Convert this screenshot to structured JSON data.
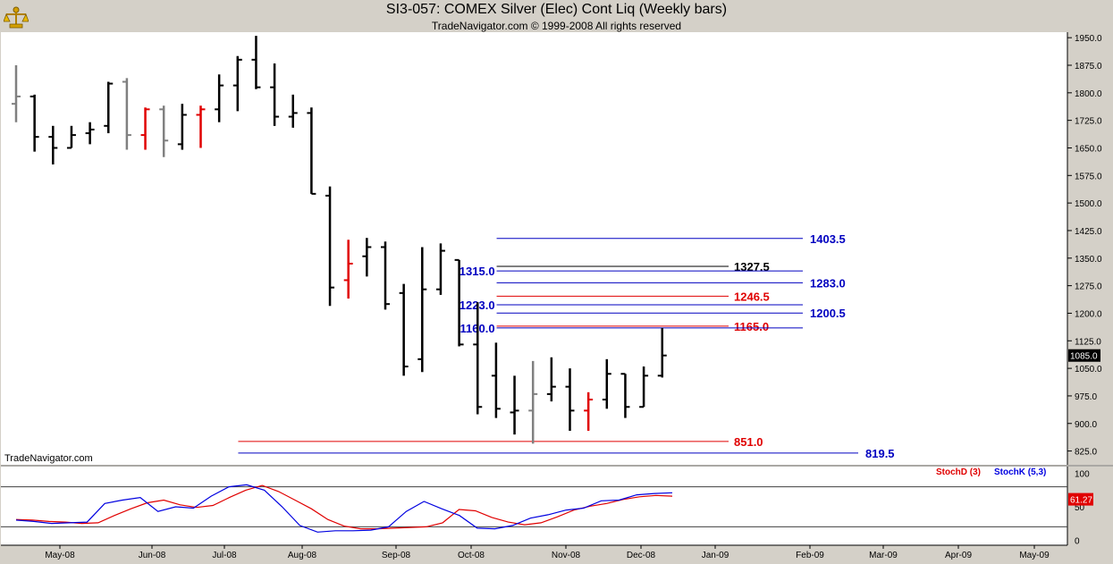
{
  "header": {
    "title": "SI3-057:  COMEX Silver (Elec) Cont Liq  (Weekly bars)",
    "subtitle": "TradeNavigator.com © 1999-2008 All rights reserved"
  },
  "watermark": "TradeNavigator.com",
  "colors": {
    "bar_black": "#000000",
    "bar_gray": "#808080",
    "bar_red": "#e00000",
    "level_red": "#e00000",
    "level_blue": "#0000c0",
    "level_black": "#000000",
    "stoch_d": "#e00000",
    "stoch_k": "#0000e0"
  },
  "chart_data": [
    {
      "type": "ohlc",
      "ylim": [
        787.5,
        1965
      ],
      "y_ticks": [
        "1950.0",
        "1875.0",
        "1800.0",
        "1725.0",
        "1650.0",
        "1575.0",
        "1500.0",
        "1425.0",
        "1350.0",
        "1275.0",
        "1200.0",
        "1125.0",
        "1050.0",
        "975.0",
        "900.0",
        "825.0"
      ],
      "x_ticks": [
        "May-08",
        "Jun-08",
        "Jul-08",
        "Aug-08",
        "Sep-08",
        "Oct-08",
        "Nov-08",
        "Dec-08",
        "Jan-09",
        "Feb-09",
        "Mar-09",
        "Apr-09",
        "May-09"
      ],
      "last_price_label": "1085.0",
      "bars": [
        {
          "o": 1770,
          "h": 1875,
          "l": 1720,
          "c": 1790,
          "color": "gray"
        },
        {
          "o": 1790,
          "h": 1795,
          "l": 1640,
          "c": 1680,
          "color": "black"
        },
        {
          "o": 1680,
          "h": 1710,
          "l": 1605,
          "c": 1650,
          "color": "black"
        },
        {
          "o": 1650,
          "h": 1710,
          "l": 1650,
          "c": 1685,
          "color": "black"
        },
        {
          "o": 1690,
          "h": 1720,
          "l": 1660,
          "c": 1700,
          "color": "black"
        },
        {
          "o": 1710,
          "h": 1830,
          "l": 1690,
          "c": 1825,
          "color": "black"
        },
        {
          "o": 1830,
          "h": 1840,
          "l": 1645,
          "c": 1685,
          "color": "gray"
        },
        {
          "o": 1685,
          "h": 1760,
          "l": 1645,
          "c": 1755,
          "color": "red"
        },
        {
          "o": 1755,
          "h": 1765,
          "l": 1625,
          "c": 1670,
          "color": "gray"
        },
        {
          "o": 1660,
          "h": 1770,
          "l": 1645,
          "c": 1740,
          "color": "black"
        },
        {
          "o": 1740,
          "h": 1765,
          "l": 1650,
          "c": 1755,
          "color": "red"
        },
        {
          "o": 1755,
          "h": 1850,
          "l": 1720,
          "c": 1820,
          "color": "black"
        },
        {
          "o": 1820,
          "h": 1900,
          "l": 1750,
          "c": 1890,
          "color": "black"
        },
        {
          "o": 1890,
          "h": 1955,
          "l": 1810,
          "c": 1815,
          "color": "black"
        },
        {
          "o": 1815,
          "h": 1880,
          "l": 1710,
          "c": 1735,
          "color": "black"
        },
        {
          "o": 1735,
          "h": 1795,
          "l": 1705,
          "c": 1745,
          "color": "black"
        },
        {
          "o": 1745,
          "h": 1760,
          "l": 1525,
          "c": 1525,
          "color": "black"
        },
        {
          "o": 1520,
          "h": 1545,
          "l": 1220,
          "c": 1270,
          "color": "black"
        },
        {
          "o": 1290,
          "h": 1400,
          "l": 1240,
          "c": 1335,
          "color": "red"
        },
        {
          "o": 1355,
          "h": 1405,
          "l": 1300,
          "c": 1380,
          "color": "black"
        },
        {
          "o": 1380,
          "h": 1395,
          "l": 1210,
          "c": 1225,
          "color": "black"
        },
        {
          "o": 1255,
          "h": 1280,
          "l": 1030,
          "c": 1055,
          "color": "black"
        },
        {
          "o": 1075,
          "h": 1380,
          "l": 1040,
          "c": 1265,
          "color": "black"
        },
        {
          "o": 1265,
          "h": 1390,
          "l": 1250,
          "c": 1370,
          "color": "black"
        },
        {
          "o": 1345,
          "h": 1345,
          "l": 1110,
          "c": 1115,
          "color": "black"
        },
        {
          "o": 1115,
          "h": 1230,
          "l": 925,
          "c": 945,
          "color": "black"
        },
        {
          "o": 1030,
          "h": 1120,
          "l": 915,
          "c": 940,
          "color": "black"
        },
        {
          "o": 930,
          "h": 1030,
          "l": 870,
          "c": 935,
          "color": "black"
        },
        {
          "o": 935,
          "h": 1070,
          "l": 845,
          "c": 980,
          "color": "gray"
        },
        {
          "o": 980,
          "h": 1080,
          "l": 960,
          "c": 1000,
          "color": "black"
        },
        {
          "o": 1000,
          "h": 1050,
          "l": 880,
          "c": 935,
          "color": "black"
        },
        {
          "o": 935,
          "h": 985,
          "l": 880,
          "c": 965,
          "color": "red"
        },
        {
          "o": 965,
          "h": 1075,
          "l": 940,
          "c": 1035,
          "color": "black"
        },
        {
          "o": 1035,
          "h": 1035,
          "l": 915,
          "c": 945,
          "color": "black"
        },
        {
          "o": 945,
          "h": 1055,
          "l": 945,
          "c": 1030,
          "color": "black"
        },
        {
          "o": 1030,
          "h": 1160,
          "l": 1025,
          "c": 1085,
          "color": "black"
        }
      ],
      "levels": [
        {
          "price": 1403.5,
          "label": "1403.5",
          "side": "right",
          "color": "blue",
          "from_bar": 27,
          "to": "ext"
        },
        {
          "price": 1327.5,
          "label": "1327.5",
          "side": "right",
          "color": "black",
          "from_bar": 27,
          "to": "mid"
        },
        {
          "price": 1315.0,
          "label": "1315.0",
          "side": "left",
          "color": "blue",
          "from_bar": 27,
          "to": "ext"
        },
        {
          "price": 1283.0,
          "label": "1283.0",
          "side": "right",
          "color": "blue",
          "from_bar": 27,
          "to": "ext"
        },
        {
          "price": 1246.5,
          "label": "1246.5",
          "side": "right",
          "color": "red",
          "from_bar": 27,
          "to": "mid"
        },
        {
          "price": 1223.0,
          "label": "1223.0",
          "side": "left",
          "color": "blue",
          "from_bar": 27,
          "to": "ext"
        },
        {
          "price": 1200.5,
          "label": "1200.5",
          "side": "right",
          "color": "blue",
          "from_bar": 27,
          "to": "ext"
        },
        {
          "price": 1165.0,
          "label": "1165.0",
          "side": "right",
          "color": "red",
          "from_bar": 27,
          "to": "mid"
        },
        {
          "price": 1160.0,
          "label": "1160.0",
          "side": "left",
          "color": "blue",
          "from_bar": 27,
          "to": "ext"
        },
        {
          "price": 851.0,
          "label": "851.0",
          "side": "right",
          "color": "red",
          "from_bar": 13,
          "to": "mid"
        },
        {
          "price": 819.5,
          "label": "819.5",
          "side": "right",
          "color": "blue",
          "from_bar": 13,
          "to": "far"
        }
      ]
    },
    {
      "type": "line",
      "ylim": [
        -5,
        105
      ],
      "y_ticks": [
        "100",
        "50",
        "0"
      ],
      "hlines": [
        80,
        20
      ],
      "last_value_label": "61.27",
      "series": [
        {
          "name": "StochD (3)",
          "color": "red",
          "values": [
            31,
            30,
            28,
            27,
            25,
            26,
            37,
            47,
            56,
            60,
            53,
            49,
            52,
            64,
            75,
            82,
            73,
            60,
            47,
            31,
            21,
            17,
            17,
            18,
            19,
            20,
            26,
            46,
            44,
            34,
            27,
            23,
            26,
            35,
            45,
            51,
            55,
            61,
            65,
            67,
            66
          ]
        },
        {
          "name": "StochK (5,3)",
          "color": "blue",
          "values": [
            30,
            28,
            25,
            26,
            27,
            55,
            60,
            64,
            43,
            50,
            48,
            66,
            80,
            83,
            75,
            50,
            22,
            12,
            14,
            14,
            15,
            20,
            43,
            58,
            47,
            37,
            18,
            17,
            22,
            33,
            38,
            45,
            48,
            59,
            60,
            68,
            70,
            71
          ]
        }
      ]
    }
  ]
}
